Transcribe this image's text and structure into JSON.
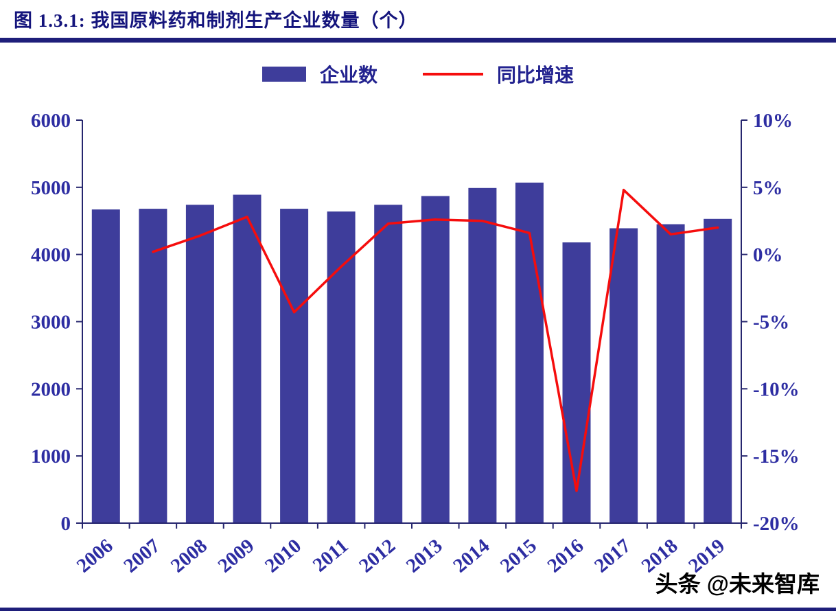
{
  "header": {
    "title": "图 1.3.1:  我国原料药和制剂生产企业数量（个）"
  },
  "legend": [
    {
      "label": "企业数",
      "type": "bar",
      "color": "#3e3d9b"
    },
    {
      "label": "同比增速",
      "type": "line",
      "color": "#f50d0d"
    }
  ],
  "watermark": "头条 @未来智库",
  "chart_data": {
    "type": "bar+line",
    "title": "图 1.3.1:  我国原料药和制剂生产企业数量（个）",
    "categories": [
      "2006",
      "2007",
      "2008",
      "2009",
      "2010",
      "2011",
      "2012",
      "2013",
      "2014",
      "2015",
      "2016",
      "2017",
      "2018",
      "2019"
    ],
    "series": [
      {
        "name": "企业数",
        "type": "bar",
        "axis": "left",
        "color": "#3e3d9b",
        "values": [
          4670,
          4680,
          4740,
          4890,
          4680,
          4640,
          4740,
          4870,
          4990,
          5070,
          4180,
          4390,
          4450,
          4530
        ]
      },
      {
        "name": "同比增速",
        "type": "line",
        "axis": "right",
        "color": "#f50d0d",
        "values": [
          null,
          0.2,
          1.4,
          2.8,
          -4.3,
          -0.9,
          2.3,
          2.6,
          2.5,
          1.6,
          -17.6,
          4.8,
          1.5,
          2.0
        ]
      }
    ],
    "left_axis": {
      "min": 0,
      "max": 6000,
      "ticks": [
        6000,
        5000,
        4000,
        3000,
        2000,
        1000,
        0
      ]
    },
    "right_axis": {
      "min": -20,
      "max": 10,
      "tick_values": [
        10,
        5,
        0,
        -5,
        -10,
        -15,
        -20
      ],
      "tick_labels": [
        "10%",
        "5%",
        "0%",
        "-5%",
        "-10%",
        "-15%",
        "-20%"
      ]
    },
    "grid": false,
    "legend_position": "top"
  }
}
